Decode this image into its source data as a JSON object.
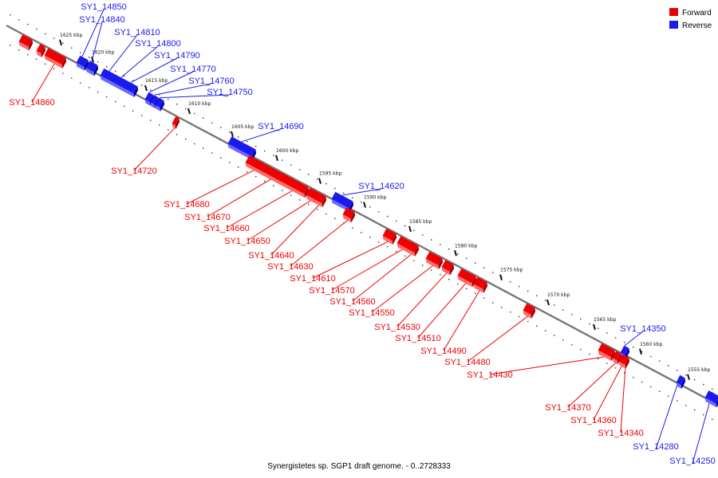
{
  "colors": {
    "forward": "#ee0000",
    "forward_light": "#ff6a6a",
    "forward_dark": "#a00000",
    "reverse": "#1a1aee",
    "reverse_light": "#6a6aff",
    "reverse_dark": "#0000a0",
    "axis": "#777777"
  },
  "legend": {
    "forward": "Forward",
    "reverse": "Reverse"
  },
  "footer": "Synergistetes sp. SGP1 draft genome. - 0..2728333",
  "ticks": [
    "1625 kbp",
    "1620 kbp",
    "1615 kbp",
    "1610 kbp",
    "1605 kbp",
    "1600 kbp",
    "1595 kbp",
    "1590 kbp",
    "1585 kbp",
    "1580 kbp",
    "1575 kbp",
    "1570 kbp",
    "1565 kbp",
    "1560 kbp",
    "1555 kbp"
  ],
  "genes": {
    "reverse": [
      "SY1_14850",
      "SY1_14840",
      "SY1_14810",
      "SY1_14800",
      "SY1_14790",
      "SY1_14770",
      "SY1_14760",
      "SY1_14750",
      "SY1_14690",
      "SY1_14620",
      "SY1_14350",
      "SY1_14280",
      "SY1_14250"
    ],
    "forward": [
      "SY1_14860",
      "SY1_14720",
      "SY1_14680",
      "SY1_14670",
      "SY1_14660",
      "SY1_14650",
      "SY1_14640",
      "SY1_14630",
      "SY1_14610",
      "SY1_14570",
      "SY1_14560",
      "SY1_14550",
      "SY1_14530",
      "SY1_14510",
      "SY1_14490",
      "SY1_14480",
      "SY1_14430",
      "SY1_14370",
      "SY1_14360",
      "SY1_14340"
    ]
  }
}
